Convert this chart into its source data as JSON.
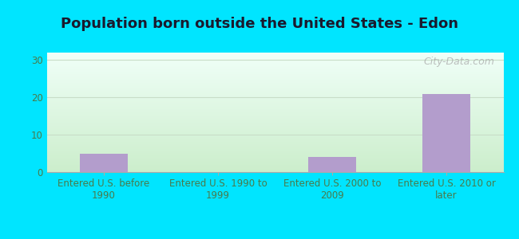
{
  "title": "Population born outside the United States - Edon",
  "categories": [
    "Entered U.S. before\n1990",
    "Entered U.S. 1990 to\n1999",
    "Entered U.S. 2000 to\n2009",
    "Entered U.S. 2010 or\nlater"
  ],
  "values": [
    5,
    0,
    4,
    21
  ],
  "bar_color": "#b39dcc",
  "ylim": [
    0,
    32
  ],
  "yticks": [
    0,
    10,
    20,
    30
  ],
  "background_outer": "#00e5ff",
  "background_inner_top": "#f0fff8",
  "background_inner_bottom": "#cceecc",
  "grid_color": "#c8ddc8",
  "title_fontsize": 13,
  "tick_fontsize": 8.5,
  "tick_color": "#4a7a4a",
  "watermark": "City-Data.com",
  "bar_width": 0.42
}
